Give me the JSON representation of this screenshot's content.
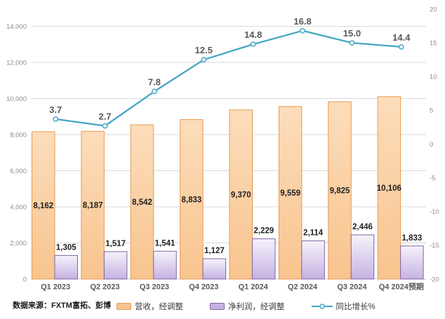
{
  "source_note": "数据来源：FXTM富拓、彭博",
  "chart_data": {
    "type": "combo-bar-line",
    "title": "",
    "categories": [
      "Q1 2023",
      "Q2 2023",
      "Q3 2023",
      "Q4 2023",
      "Q1 2024",
      "Q2 2024",
      "Q3 2024",
      "Q4 2024预期"
    ],
    "series": [
      {
        "name": "营收，经调整",
        "type": "bar",
        "axis": "left",
        "values": [
          8162,
          8187,
          8542,
          8833,
          9370,
          9559,
          9825,
          10106
        ],
        "labels": [
          "8,162",
          "8,187",
          "8,542",
          "8,833",
          "9,370",
          "9,559",
          "9,825",
          "10,106"
        ],
        "color_fill_top": "#FCDDBB",
        "color_fill_bottom": "#F8C48E",
        "color_border": "#E69A53"
      },
      {
        "name": "净利润，经调整",
        "type": "bar",
        "axis": "left",
        "values": [
          1305,
          1517,
          1541,
          1127,
          2229,
          2114,
          2446,
          1833
        ],
        "labels": [
          "1,305",
          "1,517",
          "1,541",
          "1,127",
          "2,229",
          "2,114",
          "2,446",
          "1,833"
        ],
        "color_fill_top": "#F6F2FB",
        "color_fill_bottom": "#C5B2E2",
        "color_border": "#8064A2"
      },
      {
        "name": "同比增长%",
        "type": "line",
        "axis": "right",
        "values": [
          3.7,
          2.7,
          7.8,
          12.5,
          14.8,
          16.8,
          15.0,
          14.4
        ],
        "labels": [
          "3.7",
          "2.7",
          "7.8",
          "12.5",
          "14.8",
          "16.8",
          "15.0",
          "14.4"
        ],
        "color": "#45A6C4",
        "marker_fill": "#EAF4F8"
      }
    ],
    "left_axis": {
      "min": 0,
      "max": 14000,
      "step": 2000,
      "tick_labels": [
        "0",
        "2,000",
        "4,000",
        "6,000",
        "8,000",
        "10,000",
        "12,000",
        "14,000"
      ]
    },
    "right_axis": {
      "min": -20,
      "max": 20,
      "step": 5,
      "tick_labels": [
        "-20",
        "-15",
        "-10",
        "-5",
        "0",
        "5",
        "10",
        "15",
        "20"
      ]
    },
    "grid": true,
    "gridline_color": "#D9D9D9",
    "legend_position": "bottom"
  }
}
